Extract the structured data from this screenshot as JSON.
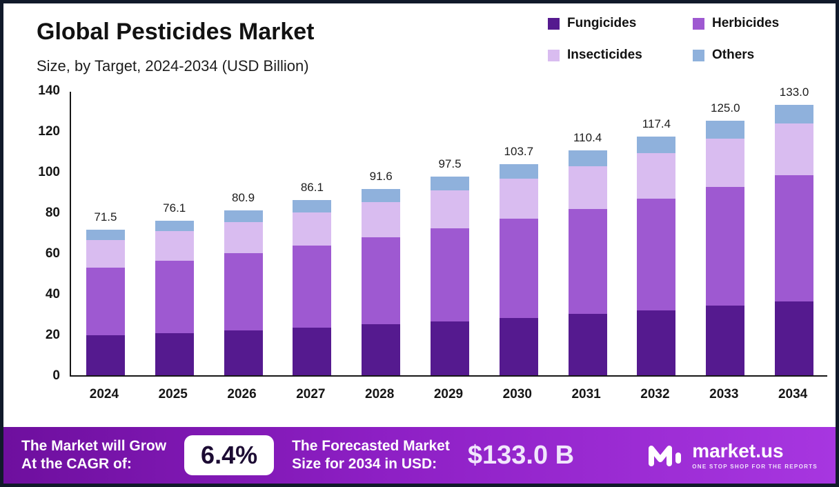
{
  "header": {
    "title": "Global Pesticides Market",
    "subtitle": "Size, by Target, 2024-2034 (USD Billion)"
  },
  "legend": [
    {
      "label": "Fungicides",
      "color": "#551a8f"
    },
    {
      "label": "Herbicides",
      "color": "#9e59d1"
    },
    {
      "label": "Insecticides",
      "color": "#d9bcf0"
    },
    {
      "label": "Others",
      "color": "#8fb1dc"
    }
  ],
  "chart_data": {
    "type": "bar",
    "stacked": true,
    "title": "Global Pesticides Market Size, by Target, 2024-2034 (USD Billion)",
    "categories": [
      "2024",
      "2025",
      "2026",
      "2027",
      "2028",
      "2029",
      "2030",
      "2031",
      "2032",
      "2033",
      "2034"
    ],
    "series": [
      {
        "name": "Fungicides",
        "color": "#551a8f",
        "values": [
          19.5,
          20.8,
          22.1,
          23.5,
          25.0,
          26.6,
          28.3,
          30.1,
          32.0,
          34.1,
          36.3
        ]
      },
      {
        "name": "Herbicides",
        "color": "#9e59d1",
        "values": [
          33.5,
          35.6,
          37.9,
          40.3,
          42.9,
          45.6,
          48.5,
          51.6,
          54.9,
          58.4,
          62.1
        ]
      },
      {
        "name": "Insecticides",
        "color": "#d9bcf0",
        "values": [
          13.5,
          14.4,
          15.3,
          16.3,
          17.3,
          18.5,
          19.7,
          21.0,
          22.3,
          23.8,
          25.3
        ]
      },
      {
        "name": "Others",
        "color": "#8fb1dc",
        "values": [
          5.0,
          5.3,
          5.6,
          6.0,
          6.4,
          6.8,
          7.2,
          7.7,
          8.2,
          8.7,
          9.3
        ]
      }
    ],
    "totals": [
      71.5,
      76.1,
      80.9,
      86.1,
      91.6,
      97.5,
      103.7,
      110.4,
      117.4,
      125.0,
      133.0
    ],
    "xlabel": "",
    "ylabel": "",
    "ylim": [
      0,
      140
    ],
    "yticks": [
      0,
      20,
      40,
      60,
      80,
      100,
      120,
      140
    ],
    "grid": false,
    "legend_position": "top-right"
  },
  "footer": {
    "cagr_label": "The Market will Grow\nAt the CAGR of:",
    "cagr_value": "6.4%",
    "forecast_label": "The Forecasted Market\nSize for 2034 in USD:",
    "forecast_value": "$133.0 B",
    "brand": "market.us",
    "brand_tagline": "ONE STOP SHOP FOR THE REPORTS"
  }
}
